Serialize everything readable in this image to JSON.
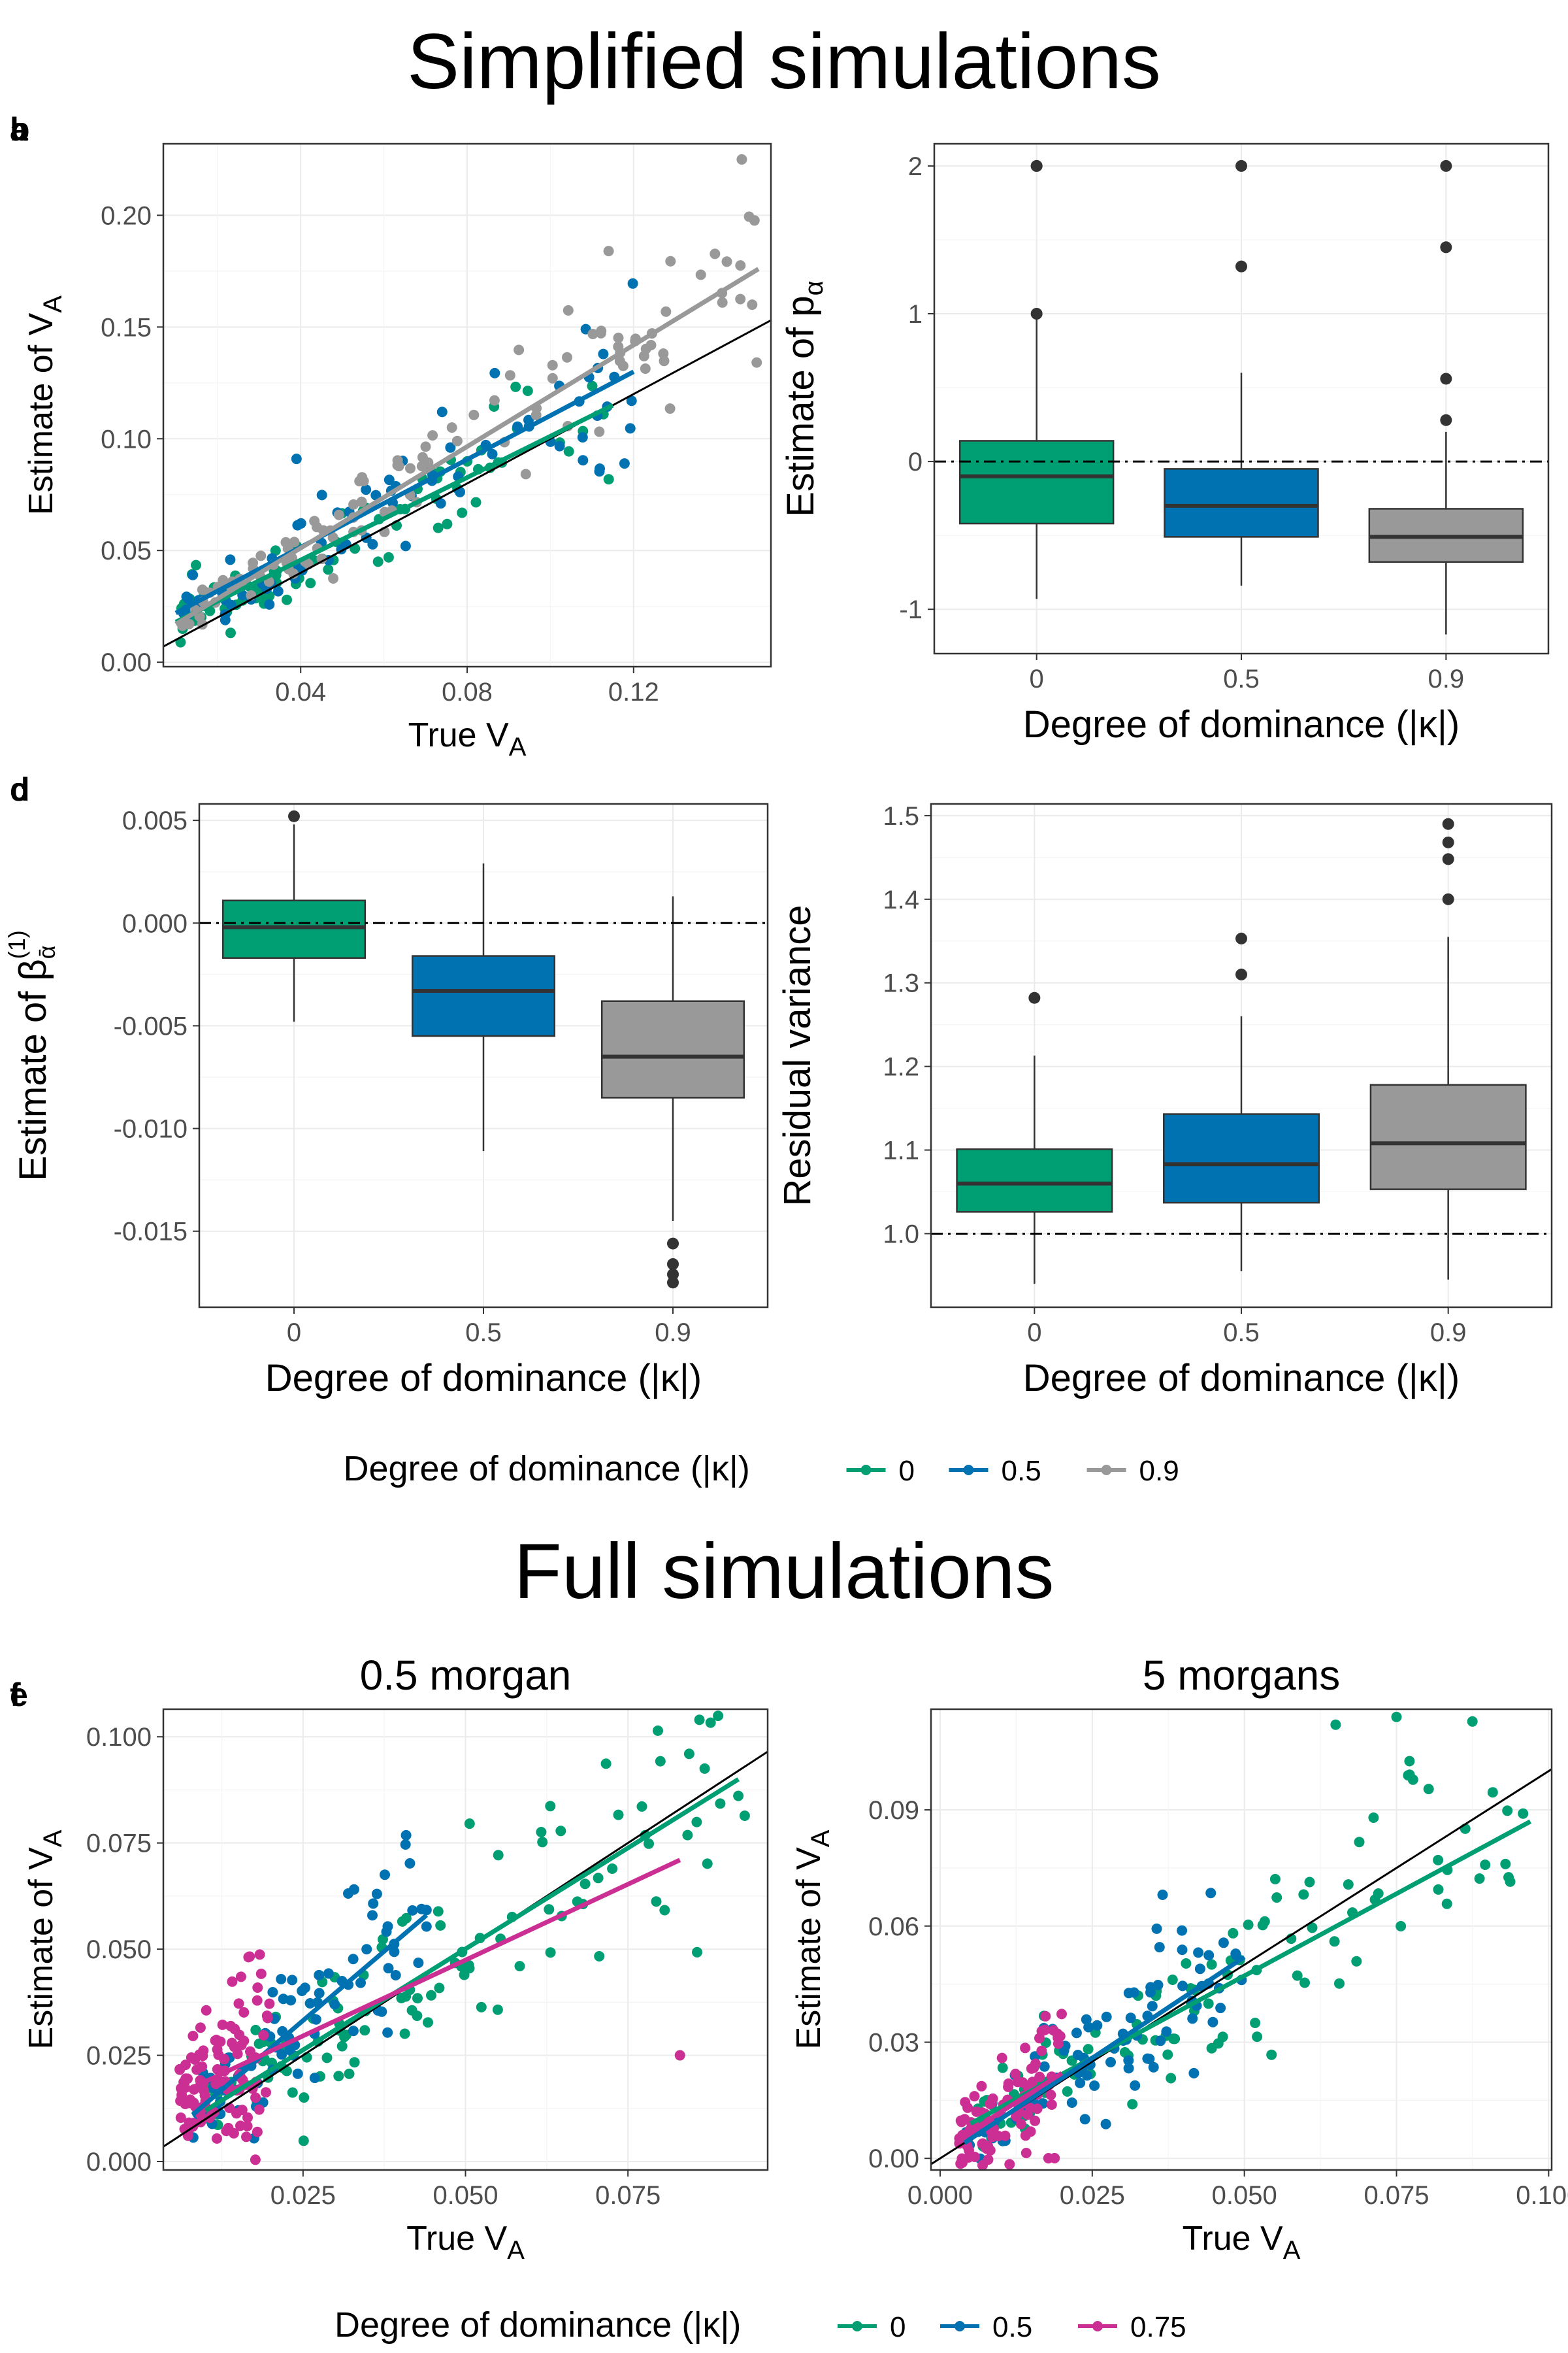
{
  "section_titles": {
    "simplified": "Simplified simulations",
    "full": "Full simulations"
  },
  "colors": {
    "k0": "#009E73",
    "k05": "#0072B2",
    "k09": "#999999",
    "k075": "#CC2F94",
    "identity_line": "#000000",
    "box_outline": "#333333"
  },
  "legends": {
    "top": {
      "title": "Degree of dominance (|κ|)",
      "items": [
        {
          "label": "0",
          "color": "#009E73"
        },
        {
          "label": "0.5",
          "color": "#0072B2"
        },
        {
          "label": "0.9",
          "color": "#999999"
        }
      ]
    },
    "bottom": {
      "title": "Degree of dominance (|κ|)",
      "items": [
        {
          "label": "0",
          "color": "#009E73"
        },
        {
          "label": "0.5",
          "color": "#0072B2"
        },
        {
          "label": "0.75",
          "color": "#CC2F94"
        }
      ]
    }
  },
  "chart_data": [
    {
      "panel": "a",
      "type": "scatter",
      "xlabel": "True V_A",
      "ylabel": "Estimate of V_A",
      "xlim": [
        0.007,
        0.153
      ],
      "ylim": [
        -0.002,
        0.232
      ],
      "xticks": [
        0.04,
        0.08,
        0.12
      ],
      "xtick_labels": [
        "0.04",
        "0.08",
        "0.12"
      ],
      "yticks": [
        0.0,
        0.05,
        0.1,
        0.15,
        0.2
      ],
      "ytick_labels": [
        "0.00",
        "0.05",
        "0.10",
        "0.15",
        "0.20"
      ],
      "identity_line": true,
      "series": [
        {
          "name": "0",
          "color": "#009E73",
          "x_range": [
            0.01,
            0.115
          ],
          "fit": [
            [
              0.01,
              0.018
            ],
            [
              0.115,
              0.115
            ]
          ],
          "scatter": 0.012,
          "n": 90,
          "seed": 11
        },
        {
          "name": "0.5",
          "color": "#0072B2",
          "x_range": [
            0.01,
            0.12
          ],
          "fit": [
            [
              0.01,
              0.022
            ],
            [
              0.12,
              0.13
            ]
          ],
          "scatter": 0.013,
          "n": 80,
          "seed": 23
        },
        {
          "name": "0.9",
          "color": "#999999",
          "x_range": [
            0.01,
            0.15
          ],
          "fit": [
            [
              0.01,
              0.017
            ],
            [
              0.15,
              0.176
            ]
          ],
          "scatter": 0.013,
          "n": 110,
          "seed": 37
        }
      ],
      "extra_points": [
        {
          "x": 0.146,
          "y": 0.225,
          "color": "#999999"
        },
        {
          "x": 0.114,
          "y": 0.184,
          "color": "#999999"
        },
        {
          "x": 0.074,
          "y": 0.112,
          "color": "#0072B2"
        },
        {
          "x": 0.039,
          "y": 0.091,
          "color": "#0072B2"
        }
      ]
    },
    {
      "panel": "b",
      "type": "box",
      "xlabel": "Degree of dominance (|κ|)",
      "ylabel": "Estimate of p_α",
      "categories": [
        "0",
        "0.5",
        "0.9"
      ],
      "colors": [
        "#009E73",
        "#0072B2",
        "#999999"
      ],
      "ylim": [
        -1.3,
        2.15
      ],
      "yticks": [
        -1,
        0,
        1,
        2
      ],
      "ytick_labels": [
        "-1",
        "0",
        "1",
        "2"
      ],
      "reference_line": 0,
      "boxes": [
        {
          "min": -0.93,
          "q1": -0.42,
          "median": -0.1,
          "q3": 0.14,
          "max": 1.0,
          "outliers": [
            1.0,
            2.0,
            2.0
          ]
        },
        {
          "min": -0.84,
          "q1": -0.51,
          "median": -0.3,
          "q3": -0.05,
          "max": 0.6,
          "outliers": [
            1.32,
            2.0
          ]
        },
        {
          "min": -1.17,
          "q1": -0.68,
          "median": -0.51,
          "q3": -0.32,
          "max": 0.2,
          "outliers": [
            0.28,
            0.56,
            1.45,
            2.0
          ]
        }
      ]
    },
    {
      "panel": "c",
      "type": "box",
      "xlabel": "Degree of dominance (|κ|)",
      "ylabel": "Estimate of β",
      "categories": [
        "0",
        "0.5",
        "0.9"
      ],
      "colors": [
        "#009E73",
        "#0072B2",
        "#999999"
      ],
      "ylim": [
        -0.0187,
        0.0058
      ],
      "yticks": [
        -0.015,
        -0.01,
        -0.005,
        0.0,
        0.005
      ],
      "ytick_labels": [
        "-0.015",
        "-0.010",
        "-0.005",
        "0.000",
        "0.005"
      ],
      "reference_line": 0,
      "boxes": [
        {
          "min": -0.0048,
          "q1": -0.0017,
          "median": -0.0002,
          "q3": 0.0011,
          "max": 0.0048,
          "outliers": [
            0.0052
          ]
        },
        {
          "min": -0.0111,
          "q1": -0.0055,
          "median": -0.0033,
          "q3": -0.0016,
          "max": 0.0029,
          "outliers": []
        },
        {
          "min": -0.0145,
          "q1": -0.0085,
          "median": -0.0065,
          "q3": -0.0038,
          "max": 0.0013,
          "outliers": [
            -0.0156,
            -0.0166,
            -0.0171,
            -0.0175
          ]
        }
      ]
    },
    {
      "panel": "d",
      "type": "box",
      "xlabel": "Degree of dominance (|κ|)",
      "ylabel": "Residual variance",
      "categories": [
        "0",
        "0.5",
        "0.9"
      ],
      "colors": [
        "#009E73",
        "#0072B2",
        "#999999"
      ],
      "ylim": [
        0.912,
        1.514
      ],
      "yticks": [
        1.0,
        1.1,
        1.2,
        1.3,
        1.4,
        1.5
      ],
      "ytick_labels": [
        "1.0",
        "1.1",
        "1.2",
        "1.3",
        "1.4",
        "1.5"
      ],
      "reference_line": 1.0,
      "boxes": [
        {
          "min": 0.94,
          "q1": 1.026,
          "median": 1.06,
          "q3": 1.101,
          "max": 1.213,
          "outliers": [
            1.282
          ]
        },
        {
          "min": 0.955,
          "q1": 1.037,
          "median": 1.083,
          "q3": 1.143,
          "max": 1.26,
          "outliers": [
            1.31,
            1.353
          ]
        },
        {
          "min": 0.945,
          "q1": 1.053,
          "median": 1.108,
          "q3": 1.178,
          "max": 1.355,
          "outliers": [
            1.4,
            1.448,
            1.468,
            1.49
          ]
        }
      ]
    },
    {
      "panel": "e",
      "type": "scatter",
      "title": "0.5 morgan",
      "xlabel": "True V_A",
      "ylabel": "Estimate of V_A",
      "xlim": [
        0.0035,
        0.0965
      ],
      "ylim": [
        -0.002,
        0.1065
      ],
      "xticks": [
        0.025,
        0.05,
        0.075
      ],
      "xtick_labels": [
        "0.025",
        "0.050",
        "0.075"
      ],
      "yticks": [
        0.0,
        0.025,
        0.05,
        0.075,
        0.1
      ],
      "ytick_labels": [
        "0.000",
        "0.025",
        "0.050",
        "0.075",
        "0.100"
      ],
      "identity_line": true,
      "series": [
        {
          "name": "0",
          "color": "#009E73",
          "x_range": [
            0.01,
            0.093
          ],
          "fit": [
            [
              0.01,
              0.012
            ],
            [
              0.092,
              0.09
            ]
          ],
          "scatter": 0.011,
          "n": 110,
          "seed": 51
        },
        {
          "name": "0.5",
          "color": "#0072B2",
          "x_range": [
            0.008,
            0.044
          ],
          "fit": [
            [
              0.008,
              0.011
            ],
            [
              0.044,
              0.058
            ]
          ],
          "scatter": 0.01,
          "n": 90,
          "seed": 63
        },
        {
          "name": "0.75",
          "color": "#CC2F94",
          "x_range": [
            0.006,
            0.02
          ],
          "fit": [
            [
              0.006,
              0.016
            ],
            [
              0.083,
              0.071
            ]
          ],
          "scatter": 0.01,
          "n": 110,
          "seed": 79
        }
      ],
      "extra_points": [
        {
          "x": 0.083,
          "y": 0.025,
          "color": "#CC2F94"
        },
        {
          "x": 0.086,
          "y": 0.104,
          "color": "#009E73"
        }
      ]
    },
    {
      "panel": "f",
      "type": "scatter",
      "title": "5 morgans",
      "xlabel": "True V_A",
      "ylabel": "Estimate of V_A",
      "xlim": [
        -0.0015,
        0.1005
      ],
      "ylim": [
        -0.003,
        0.116
      ],
      "xticks": [
        0.0,
        0.025,
        0.05,
        0.075,
        0.1
      ],
      "xtick_labels": [
        "0.000",
        "0.025",
        "0.050",
        "0.075",
        "0.100"
      ],
      "yticks": [
        0.0,
        0.03,
        0.06,
        0.09
      ],
      "ytick_labels": [
        "0.00",
        "0.03",
        "0.06",
        "0.09"
      ],
      "identity_line": true,
      "series": [
        {
          "name": "0",
          "color": "#009E73",
          "x_range": [
            0.005,
            0.097
          ],
          "fit": [
            [
              0.005,
              0.009
            ],
            [
              0.097,
              0.087
            ]
          ],
          "scatter": 0.012,
          "n": 110,
          "seed": 91
        },
        {
          "name": "0.5",
          "color": "#0072B2",
          "x_range": [
            0.004,
            0.05
          ],
          "fit": [
            [
              0.004,
              0.004
            ],
            [
              0.05,
              0.052
            ]
          ],
          "scatter": 0.01,
          "n": 90,
          "seed": 103
        },
        {
          "name": "0.75",
          "color": "#CC2F94",
          "x_range": [
            0.003,
            0.02
          ],
          "fit": [
            [
              0.003,
              0.005
            ],
            [
              0.02,
              0.022
            ]
          ],
          "scatter": 0.01,
          "n": 100,
          "seed": 117
        }
      ],
      "extra_points": [
        {
          "x": 0.075,
          "y": 0.114,
          "color": "#009E73"
        },
        {
          "x": 0.065,
          "y": 0.112,
          "color": "#009E73"
        }
      ]
    }
  ]
}
